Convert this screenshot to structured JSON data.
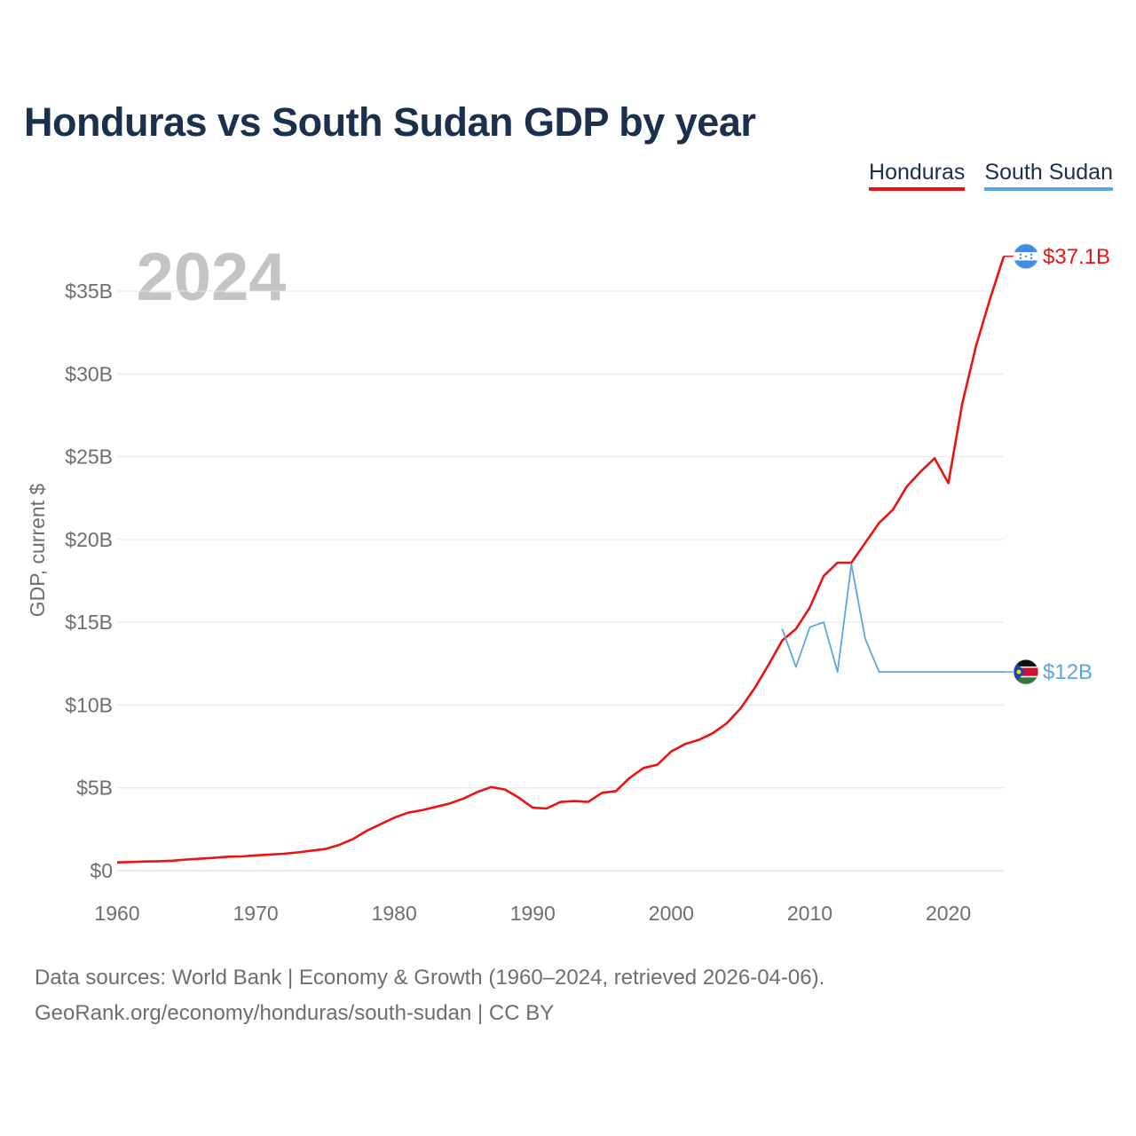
{
  "title": "Honduras vs South Sudan GDP by year",
  "legend": {
    "items": [
      {
        "label": "Honduras",
        "color": "#ee1111"
      },
      {
        "label": "South Sudan",
        "color": "#5aa5e6"
      }
    ]
  },
  "year_label": "2024",
  "source": {
    "line1": "Data sources: World Bank | Economy & Growth (1960–2024, retrieved 2026-04-06).",
    "line2": "GeoRank.org/economy/honduras/south-sudan | CC BY"
  },
  "chart_data": {
    "type": "line",
    "title": "Honduras vs South Sudan GDP by year",
    "xlabel": "",
    "ylabel": "GDP, current $",
    "xlim": [
      1960,
      2024
    ],
    "ylim": [
      0,
      37.5
    ],
    "units": "billions USD",
    "xticks": [
      1960,
      1970,
      1980,
      1990,
      2000,
      2010,
      2020
    ],
    "yticks": [
      {
        "value": 0,
        "label": "$0"
      },
      {
        "value": 5,
        "label": "$5B"
      },
      {
        "value": 10,
        "label": "$10B"
      },
      {
        "value": 15,
        "label": "$15B"
      },
      {
        "value": 20,
        "label": "$20B"
      },
      {
        "value": 25,
        "label": "$25B"
      },
      {
        "value": 30,
        "label": "$30B"
      },
      {
        "value": 35,
        "label": "$35B"
      }
    ],
    "grid": true,
    "series": [
      {
        "name": "Honduras",
        "color": "#ee1111",
        "end_label": "$37.1B",
        "flag": "honduras-flag-icon",
        "x": [
          1960,
          1961,
          1962,
          1963,
          1964,
          1965,
          1966,
          1967,
          1968,
          1969,
          1970,
          1971,
          1972,
          1973,
          1974,
          1975,
          1976,
          1977,
          1978,
          1979,
          1980,
          1981,
          1982,
          1983,
          1984,
          1985,
          1986,
          1987,
          1988,
          1989,
          1990,
          1991,
          1992,
          1993,
          1994,
          1995,
          1996,
          1997,
          1998,
          1999,
          2000,
          2001,
          2002,
          2003,
          2004,
          2005,
          2006,
          2007,
          2008,
          2009,
          2010,
          2011,
          2012,
          2013,
          2014,
          2015,
          2016,
          2017,
          2018,
          2019,
          2020,
          2021,
          2022,
          2023,
          2024
        ],
        "values": [
          0.5,
          0.52,
          0.55,
          0.57,
          0.6,
          0.67,
          0.72,
          0.77,
          0.84,
          0.86,
          0.92,
          0.97,
          1.02,
          1.1,
          1.2,
          1.3,
          1.55,
          1.9,
          2.4,
          2.8,
          3.2,
          3.5,
          3.65,
          3.85,
          4.05,
          4.35,
          4.75,
          5.05,
          4.9,
          4.4,
          3.8,
          3.75,
          4.15,
          4.2,
          4.15,
          4.7,
          4.8,
          5.6,
          6.2,
          6.4,
          7.2,
          7.65,
          7.9,
          8.3,
          8.9,
          9.8,
          11.0,
          12.4,
          13.9,
          14.6,
          15.9,
          17.8,
          18.6,
          18.6,
          19.8,
          21.0,
          21.8,
          23.2,
          24.1,
          24.9,
          23.4,
          28.2,
          31.7,
          34.5,
          37.1
        ]
      },
      {
        "name": "South Sudan",
        "color": "#5aa5e6",
        "end_label": "$12B",
        "flag": "south-sudan-flag-icon",
        "x": [
          2008,
          2009,
          2010,
          2011,
          2012,
          2013,
          2014,
          2015,
          2016,
          2017,
          2018,
          2019,
          2020,
          2021,
          2022,
          2023,
          2024
        ],
        "values": [
          14.6,
          12.3,
          14.7,
          15.0,
          12.0,
          18.5,
          14.0,
          12.0,
          12.0,
          12.0,
          12.0,
          12.0,
          12.0,
          12.0,
          12.0,
          12.0,
          12.0
        ]
      }
    ]
  }
}
